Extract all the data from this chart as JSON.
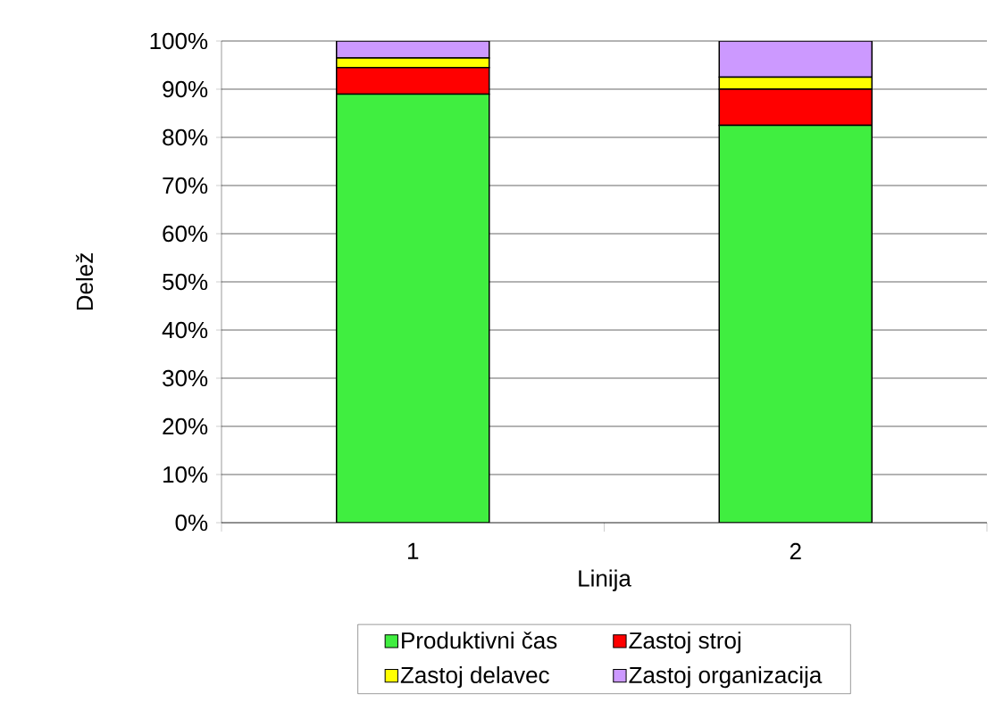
{
  "chart_data": {
    "type": "bar",
    "stacked": true,
    "xlabel": "Linija",
    "ylabel": "Delež",
    "categories": [
      "1",
      "2"
    ],
    "series": [
      {
        "name": "Produktivni čas",
        "color": "#40ee40",
        "values": [
          89,
          82.5
        ]
      },
      {
        "name": "Zastoj stroj",
        "color": "#ff0000",
        "values": [
          5.5,
          7.5
        ]
      },
      {
        "name": "Zastoj delavec",
        "color": "#ffff00",
        "values": [
          2,
          2.5
        ]
      },
      {
        "name": "Zastoj organizacija",
        "color": "#cc99ff",
        "values": [
          3.5,
          7.5
        ]
      }
    ],
    "ylim": [
      0,
      100
    ],
    "yticks": [
      {
        "value": 0,
        "label": "0%"
      },
      {
        "value": 10,
        "label": "10%"
      },
      {
        "value": 20,
        "label": "20%"
      },
      {
        "value": 30,
        "label": "30%"
      },
      {
        "value": 40,
        "label": "40%"
      },
      {
        "value": 50,
        "label": "50%"
      },
      {
        "value": 60,
        "label": "60%"
      },
      {
        "value": 70,
        "label": "70%"
      },
      {
        "value": 80,
        "label": "80%"
      },
      {
        "value": 90,
        "label": "90%"
      },
      {
        "value": 100,
        "label": "100%"
      }
    ],
    "grid": "y",
    "legend": "bottom"
  }
}
